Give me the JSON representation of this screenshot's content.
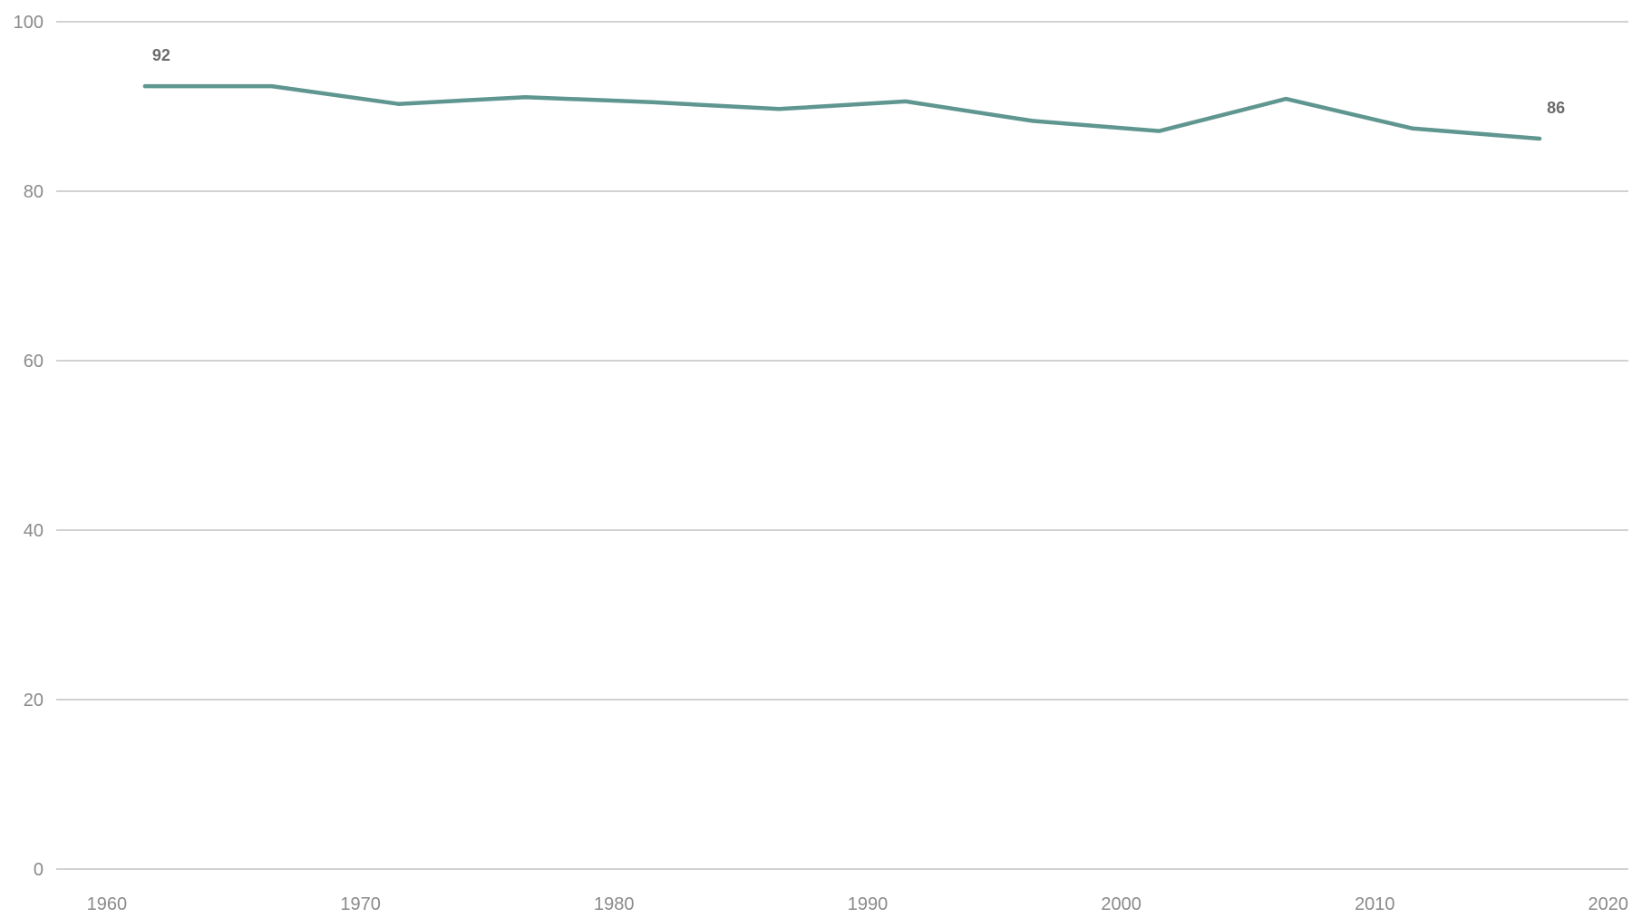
{
  "chart_data": {
    "type": "line",
    "title": "",
    "xlabel": "",
    "ylabel": "",
    "xlim": [
      1958,
      2020
    ],
    "ylim": [
      0,
      100
    ],
    "x_ticks": [
      1960,
      1970,
      1980,
      1990,
      2000,
      2010,
      2020
    ],
    "y_ticks": [
      0,
      20,
      40,
      60,
      80,
      100
    ],
    "x_tick_labels": [
      "1960",
      "1970",
      "1980",
      "1990",
      "2000",
      "2010",
      "2020"
    ],
    "y_tick_labels": [
      "0",
      "20",
      "40",
      "60",
      "80",
      "100"
    ],
    "grid": "horizontal",
    "series": [
      {
        "color": "#5f9690",
        "points": [
          {
            "x": 1961.5,
            "y": 92.4
          },
          {
            "x": 1966.5,
            "y": 92.4
          },
          {
            "x": 1971.5,
            "y": 90.3
          },
          {
            "x": 1976.5,
            "y": 91.1
          },
          {
            "x": 1981.5,
            "y": 90.5
          },
          {
            "x": 1986.5,
            "y": 89.7
          },
          {
            "x": 1991.5,
            "y": 90.6
          },
          {
            "x": 1996.5,
            "y": 88.3
          },
          {
            "x": 2001.5,
            "y": 87.1
          },
          {
            "x": 2006.5,
            "y": 90.9
          },
          {
            "x": 2011.5,
            "y": 87.4
          },
          {
            "x": 2016.5,
            "y": 86.2
          }
        ]
      }
    ],
    "annotations": [
      {
        "x": 1961.5,
        "y": 92.4,
        "text": "92"
      },
      {
        "x": 2016.5,
        "y": 86.2,
        "text": "86"
      }
    ]
  }
}
